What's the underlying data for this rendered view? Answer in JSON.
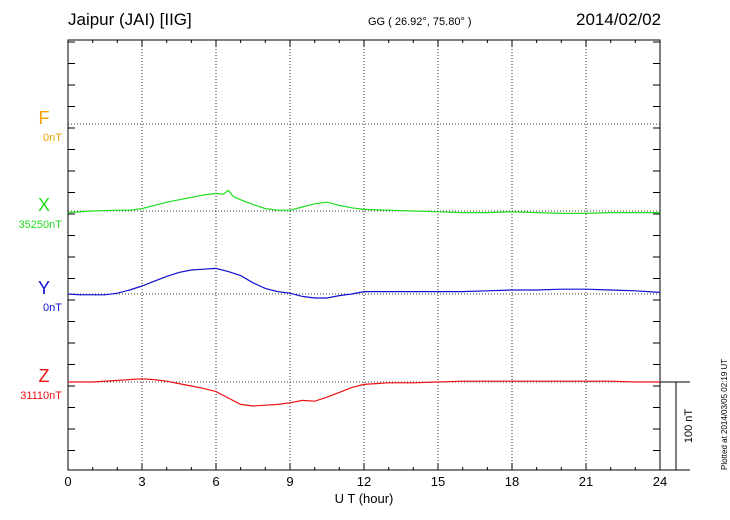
{
  "header": {
    "station": "Jaipur (JAI)  [IIG]",
    "coords": "GG ( 26.92°,  75.80° )",
    "date": "2014/02/02",
    "plotted": "Plotted at 2014/03/05 02:19 UT"
  },
  "chart_data": {
    "type": "line",
    "xlabel": "U T (hour)",
    "xlim": [
      0,
      24
    ],
    "xticks": [
      "0",
      "3",
      "6",
      "9",
      "12",
      "15",
      "18",
      "21",
      "24"
    ],
    "scale_bar": {
      "label": "100 nT",
      "value": 100
    },
    "grid": true,
    "series": [
      {
        "name": "F",
        "baseline_label": "0nT",
        "color": "#f5a000",
        "x": [],
        "y": []
      },
      {
        "name": "X",
        "baseline_label": "35250nT",
        "color": "#22dd22",
        "x": [
          0,
          1,
          2,
          2.5,
          3,
          3.5,
          4,
          4.5,
          5,
          5.5,
          6,
          6.3,
          6.5,
          6.7,
          7,
          7.5,
          8,
          8.5,
          9,
          9.5,
          10,
          10.5,
          11,
          11.5,
          12,
          13,
          14,
          15,
          16,
          17,
          18,
          19,
          20,
          21,
          22,
          23,
          24
        ],
        "y": [
          -2,
          0,
          1,
          1,
          3,
          7,
          11,
          14,
          17,
          20,
          22,
          21,
          26,
          18,
          14,
          8,
          3,
          1,
          1,
          5,
          9,
          11,
          7,
          4,
          2,
          1,
          0,
          -1,
          -2,
          -2,
          -1,
          -2,
          -3,
          -3,
          -2,
          -2,
          -2
        ]
      },
      {
        "name": "Y",
        "baseline_label": "0nT",
        "color": "#1010d0",
        "x": [
          0,
          0.5,
          1,
          1.5,
          2,
          2.5,
          3,
          3.5,
          4,
          4.5,
          5,
          5.5,
          6,
          6.5,
          7,
          7.5,
          8,
          8.5,
          9,
          9.5,
          10,
          10.5,
          11,
          11.5,
          12,
          13,
          14,
          15,
          16,
          17,
          18,
          19,
          20,
          21,
          22,
          23,
          24
        ],
        "y": [
          0,
          -1,
          -1,
          -1,
          1,
          5,
          10,
          16,
          22,
          27,
          30,
          31,
          32,
          28,
          23,
          14,
          7,
          3,
          1,
          -3,
          -5,
          -5,
          -2,
          0,
          3,
          3,
          3,
          3,
          3,
          4,
          5,
          5,
          6,
          6,
          5,
          4,
          2
        ]
      },
      {
        "name": "Z",
        "baseline_label": "31110nT",
        "color": "#ee1111",
        "x": [
          0,
          1,
          2,
          2.5,
          3,
          3.5,
          4,
          4.5,
          5,
          5.5,
          6,
          6.5,
          7,
          7.5,
          8,
          8.5,
          9,
          9.5,
          10,
          10.5,
          11,
          11.5,
          12,
          13,
          14,
          15,
          16,
          17,
          18,
          19,
          20,
          21,
          22,
          23,
          24
        ],
        "y": [
          0,
          0,
          2,
          3,
          4,
          3,
          1,
          -2,
          -5,
          -8,
          -12,
          -20,
          -28,
          -30,
          -29,
          -28,
          -26,
          -23,
          -24,
          -19,
          -13,
          -7,
          -3,
          -1,
          -1,
          0,
          1,
          1,
          1,
          1,
          1,
          1,
          1,
          0,
          0
        ]
      }
    ]
  }
}
